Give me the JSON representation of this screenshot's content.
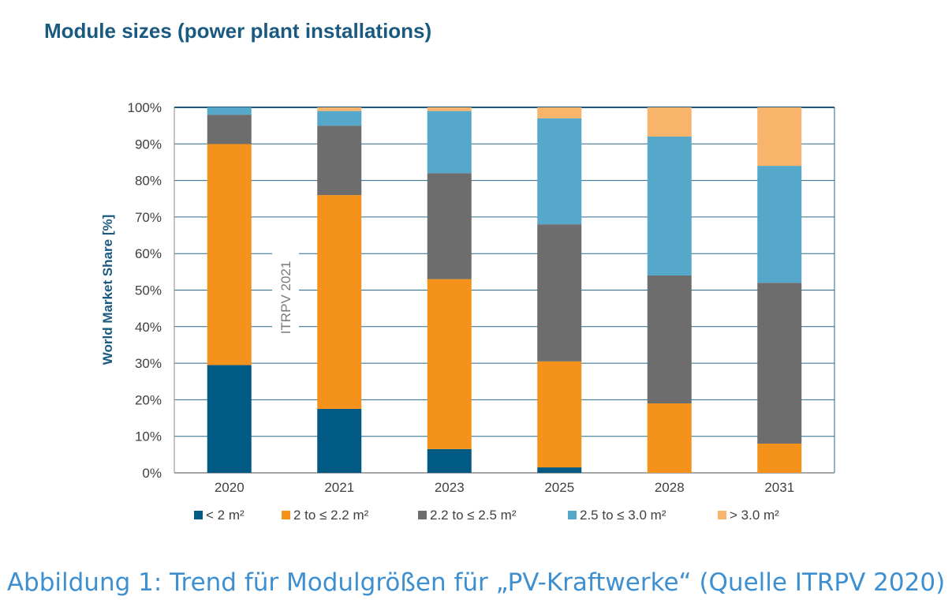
{
  "title": "Module sizes (power plant installations)",
  "caption": "Abbildung 1: Trend für Modulgrößen für „PV-Kraftwerke“ (Quelle ITRPV 2020)",
  "chart_data": {
    "type": "bar",
    "stacked": true,
    "categories": [
      "2020",
      "2021",
      "2023",
      "2025",
      "2028",
      "2031"
    ],
    "series": [
      {
        "name": "< 2 m²",
        "color": "#005a84",
        "values": [
          29.5,
          17.5,
          6.5,
          1.5,
          0,
          0
        ]
      },
      {
        "name": "2 to ≤ 2.2 m²",
        "color": "#f4921c",
        "values": [
          60.5,
          58.5,
          46.5,
          29,
          19,
          8
        ]
      },
      {
        "name": "2.2 to ≤ 2.5 m²",
        "color": "#6d6d6d",
        "values": [
          8,
          19,
          29,
          37.5,
          35,
          44
        ]
      },
      {
        "name": "2.5 to ≤ 3.0 m²",
        "color": "#56a8cb",
        "values": [
          2,
          4,
          17,
          29,
          38,
          32
        ]
      },
      {
        "name": "> 3.0 m²",
        "color": "#f9b46c",
        "values": [
          0,
          1,
          1,
          3,
          8,
          16
        ]
      }
    ],
    "ylabel": "World Market Share [%]",
    "ylim": [
      0,
      100
    ],
    "yticks": [
      "0%",
      "10%",
      "20%",
      "30%",
      "40%",
      "50%",
      "60%",
      "70%",
      "80%",
      "90%",
      "100%"
    ],
    "grid": true,
    "legend_position": "bottom",
    "annotation": "ITRPV 2021"
  }
}
